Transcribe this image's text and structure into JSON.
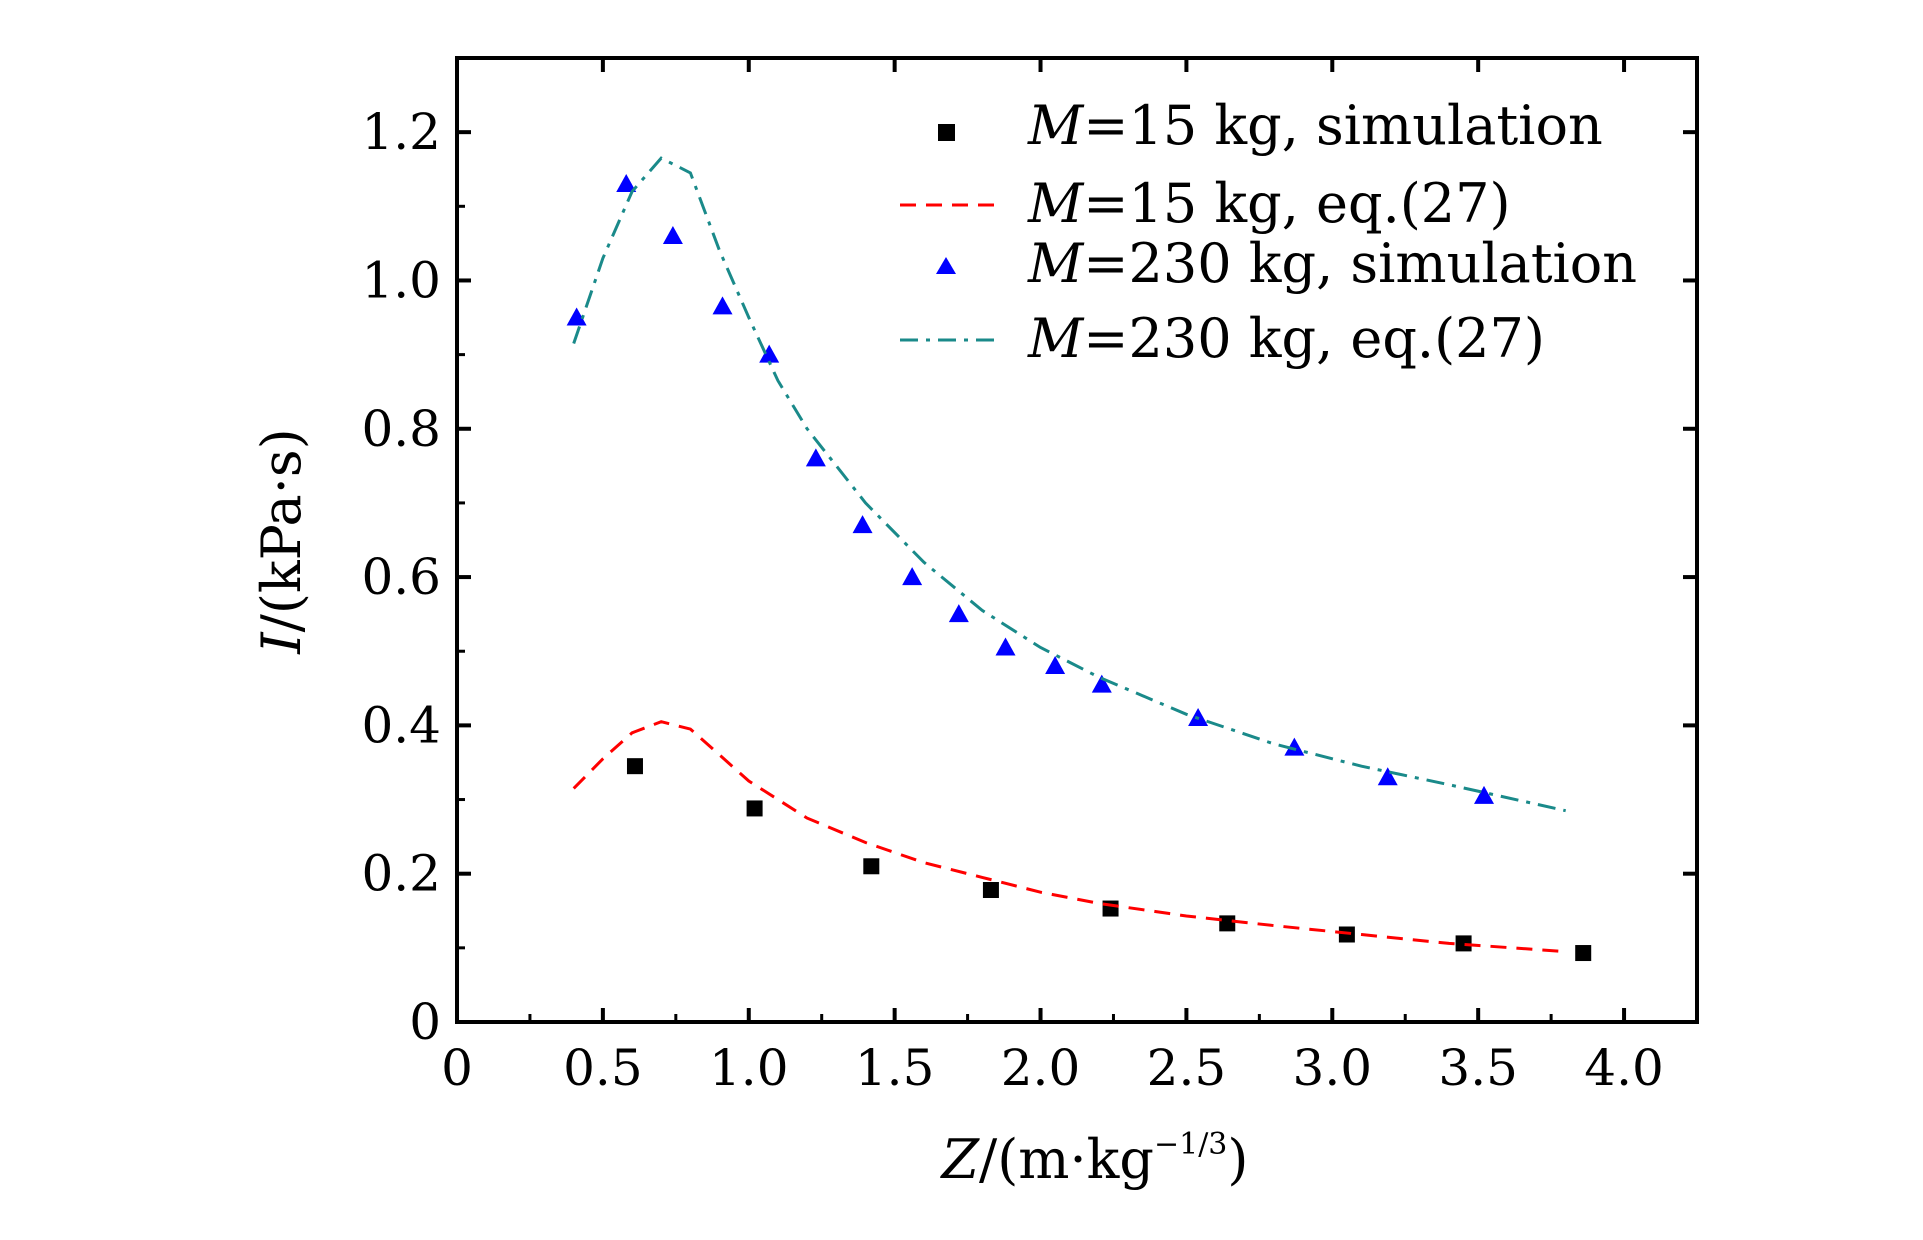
{
  "chart_data": {
    "type": "line",
    "xlabel": {
      "var": "Z",
      "unit_open": "/(m·kg",
      "unit_sup": "−1/3",
      "unit_close": ")"
    },
    "ylabel": {
      "var": "I",
      "unit": "/(kPa·s)"
    },
    "xlim": [
      0,
      4.25
    ],
    "ylim": [
      0,
      1.3
    ],
    "x_ticks": [
      0,
      0.5,
      1.0,
      1.5,
      2.0,
      2.5,
      3.0,
      3.5,
      4.0
    ],
    "x_tick_labels": [
      "0",
      "0.5",
      "1.0",
      "1.5",
      "2.0",
      "2.5",
      "3.0",
      "3.5",
      "4.0"
    ],
    "y_ticks": [
      0,
      0.2,
      0.4,
      0.6,
      0.8,
      1.0,
      1.2
    ],
    "y_tick_labels": [
      "0",
      "0.2",
      "0.4",
      "0.6",
      "0.8",
      "1.0",
      "1.2"
    ],
    "grid": false,
    "legend_position": "top-right",
    "series": [
      {
        "legend_var": "M",
        "legend_rest": "=15 kg, simulation",
        "kind": "scatter",
        "marker": "square",
        "color": "#000000",
        "x": [
          0.61,
          1.02,
          1.42,
          1.83,
          2.24,
          2.64,
          3.05,
          3.45,
          3.86
        ],
        "y": [
          0.345,
          0.288,
          0.21,
          0.178,
          0.153,
          0.133,
          0.118,
          0.106,
          0.093
        ]
      },
      {
        "legend_var": "M",
        "legend_rest": "=15 kg, eq.(27)",
        "kind": "line",
        "dash": "dashed",
        "color": "#ff0000",
        "x": [
          0.4,
          0.5,
          0.6,
          0.7,
          0.8,
          0.9,
          1.0,
          1.2,
          1.4,
          1.6,
          1.8,
          2.0,
          2.2,
          2.5,
          2.8,
          3.1,
          3.4,
          3.8
        ],
        "y": [
          0.315,
          0.355,
          0.39,
          0.405,
          0.395,
          0.36,
          0.325,
          0.275,
          0.242,
          0.215,
          0.195,
          0.175,
          0.16,
          0.143,
          0.13,
          0.118,
          0.106,
          0.095
        ]
      },
      {
        "legend_var": "M",
        "legend_rest": "=230 kg, simulation",
        "kind": "scatter",
        "marker": "triangle",
        "color": "#0000ff",
        "x": [
          0.41,
          0.58,
          0.74,
          0.91,
          1.07,
          1.23,
          1.39,
          1.56,
          1.72,
          1.88,
          2.05,
          2.21,
          2.54,
          2.87,
          3.19,
          3.52
        ],
        "y": [
          0.95,
          1.13,
          1.06,
          0.965,
          0.9,
          0.76,
          0.67,
          0.6,
          0.55,
          0.505,
          0.48,
          0.455,
          0.41,
          0.37,
          0.33,
          0.305
        ]
      },
      {
        "legend_var": "M",
        "legend_rest": "=230 kg, eq.(27)",
        "kind": "line",
        "dash": "dash-dot",
        "color": "#1a8a8a",
        "x": [
          0.4,
          0.5,
          0.6,
          0.7,
          0.8,
          0.9,
          1.0,
          1.1,
          1.2,
          1.4,
          1.6,
          1.8,
          2.0,
          2.2,
          2.5,
          2.8,
          3.1,
          3.4,
          3.8
        ],
        "y": [
          0.915,
          1.03,
          1.12,
          1.165,
          1.145,
          1.04,
          0.95,
          0.865,
          0.8,
          0.7,
          0.62,
          0.555,
          0.505,
          0.465,
          0.415,
          0.375,
          0.345,
          0.32,
          0.285
        ]
      }
    ]
  }
}
